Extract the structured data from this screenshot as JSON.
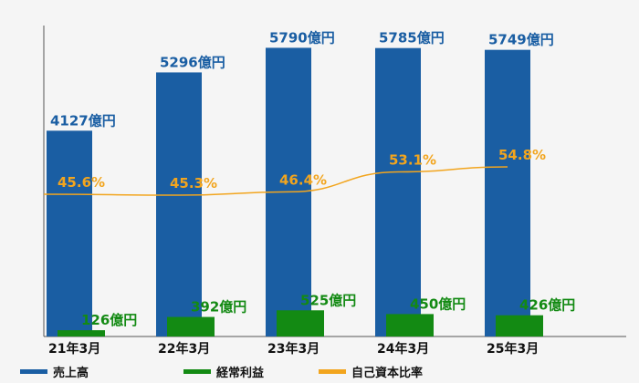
{
  "chart_data": {
    "type": "bar",
    "categories": [
      "21年3月",
      "22年3月",
      "23年3月",
      "24年3月",
      "25年3月"
    ],
    "series": [
      {
        "name": "売上高",
        "kind": "bar",
        "color": "#1a5ea3",
        "label_color": "#1a5ea3",
        "values": [
          4127,
          5296,
          5790,
          5785,
          5749
        ],
        "labels": [
          "4127億円",
          "5296億円",
          "5790億円",
          "5785億円",
          "5749億円"
        ]
      },
      {
        "name": "経常利益",
        "kind": "bar",
        "color": "#138a13",
        "label_color": "#138a13",
        "values": [
          126,
          392,
          525,
          450,
          426
        ],
        "labels": [
          "126億円",
          "392億円",
          "525億円",
          "450億円",
          "426億円"
        ]
      },
      {
        "name": "自己資本比率",
        "kind": "line",
        "color": "#f2a51e",
        "label_color": "#f2a51e",
        "values": [
          45.6,
          45.3,
          46.4,
          53.1,
          54.8
        ],
        "labels": [
          "45.6%",
          "45.3%",
          "46.4%",
          "53.1%",
          "54.8%"
        ]
      }
    ],
    "ylim_bars": [
      0,
      6200
    ],
    "ylim_line": [
      0,
      100
    ],
    "legend": "bottom-left",
    "grid": false
  }
}
